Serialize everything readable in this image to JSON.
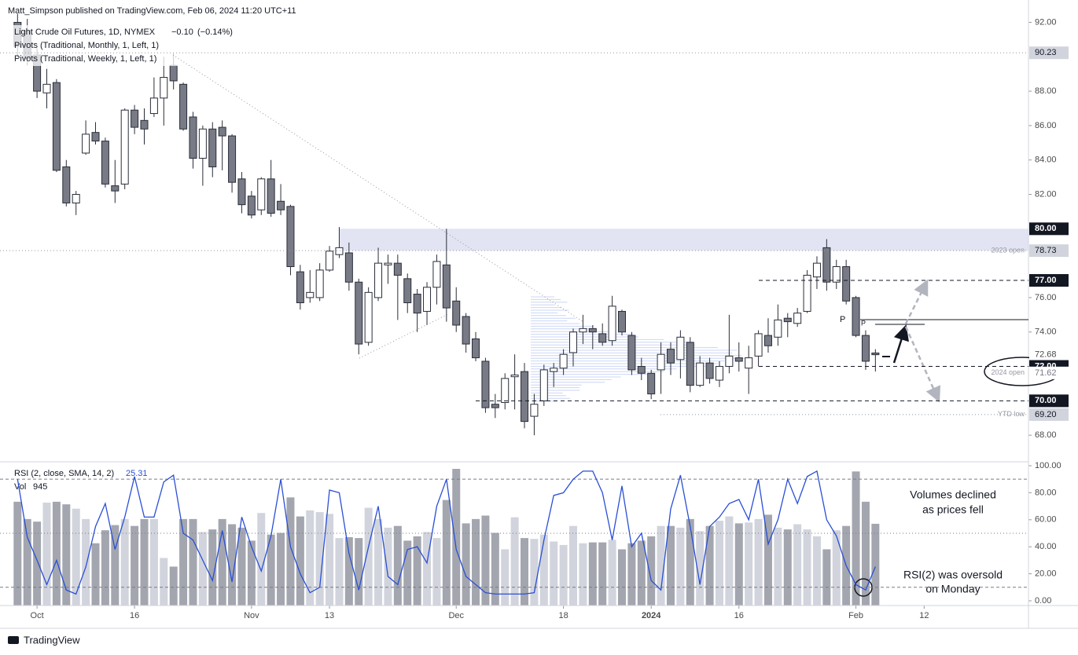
{
  "header": {
    "publisher": "Matt_Simpson published on TradingView.com, Feb 06, 2024 11:20 UTC+11",
    "brand": "TradingView"
  },
  "chart_data": {
    "type": "candlestick",
    "symbol": "Light Crude Oil Futures, 1D, NYMEX",
    "change": {
      "value": -0.1,
      "label": "−0.10"
    },
    "change_pct": {
      "value": -0.14,
      "label": "(−0.14%)"
    },
    "indicators": [
      "Pivots (Traditional, Monthly, 1, Left, 1)",
      "Pivots (Traditional, Weekly, 1, Left, 1)"
    ],
    "up_color": "#ffffff",
    "down_color": "#787b86",
    "edge_color": "#2a2e39",
    "candles": [
      [
        92.0,
        92.5,
        90.0,
        90.6
      ],
      [
        91.5,
        92.2,
        89.5,
        89.9
      ],
      [
        90.1,
        90.5,
        87.6,
        88.0
      ],
      [
        87.9,
        89.3,
        87.0,
        88.4
      ],
      [
        88.5,
        88.7,
        83.3,
        83.4
      ],
      [
        83.6,
        84.0,
        81.3,
        81.5
      ],
      [
        81.5,
        82.2,
        80.8,
        82.0
      ],
      [
        84.4,
        86.3,
        84.3,
        85.5
      ],
      [
        85.6,
        86.2,
        84.9,
        85.1
      ],
      [
        85.1,
        85.3,
        82.4,
        82.6
      ],
      [
        82.5,
        84.0,
        81.5,
        82.2
      ],
      [
        82.6,
        87.0,
        82.3,
        86.9
      ],
      [
        86.9,
        87.2,
        85.5,
        85.9
      ],
      [
        86.3,
        87.0,
        84.9,
        85.8
      ],
      [
        86.7,
        88.8,
        86.5,
        87.6
      ],
      [
        87.6,
        90.0,
        86.0,
        88.8
      ],
      [
        89.5,
        90.2,
        88.1,
        88.6
      ],
      [
        88.4,
        88.5,
        85.7,
        85.8
      ],
      [
        86.5,
        86.8,
        83.5,
        84.1
      ],
      [
        84.1,
        86.0,
        82.5,
        85.8
      ],
      [
        85.8,
        86.2,
        83.0,
        83.6
      ],
      [
        85.9,
        86.3,
        83.4,
        85.4
      ],
      [
        85.4,
        85.5,
        82.1,
        82.7
      ],
      [
        82.9,
        83.3,
        80.9,
        81.4
      ],
      [
        81.9,
        82.2,
        80.6,
        80.8
      ],
      [
        81.1,
        83.0,
        80.8,
        82.9
      ],
      [
        82.9,
        84.0,
        80.7,
        80.9
      ],
      [
        81.6,
        82.6,
        80.8,
        81.1
      ],
      [
        81.3,
        81.4,
        77.3,
        77.8
      ],
      [
        77.5,
        77.9,
        75.3,
        75.7
      ],
      [
        76.0,
        77.6,
        75.7,
        76.3
      ],
      [
        76.0,
        78.0,
        75.8,
        77.6
      ],
      [
        77.6,
        79.0,
        77.5,
        78.7
      ],
      [
        78.5,
        80.1,
        78.3,
        78.9
      ],
      [
        78.6,
        79.2,
        76.4,
        76.9
      ],
      [
        76.9,
        77.1,
        72.7,
        73.3
      ],
      [
        73.4,
        76.6,
        73.2,
        76.3
      ],
      [
        76.0,
        78.9,
        75.8,
        78.0
      ],
      [
        77.9,
        78.5,
        76.8,
        78.0
      ],
      [
        78.0,
        78.5,
        74.7,
        77.3
      ],
      [
        77.1,
        77.4,
        75.1,
        75.7
      ],
      [
        76.2,
        76.5,
        74.0,
        75.1
      ],
      [
        75.2,
        76.9,
        74.4,
        76.6
      ],
      [
        76.6,
        78.5,
        75.6,
        78.1
      ],
      [
        77.9,
        80.0,
        74.6,
        75.4
      ],
      [
        75.8,
        76.6,
        74.0,
        74.4
      ],
      [
        74.9,
        75.1,
        72.8,
        73.3
      ],
      [
        73.6,
        74.0,
        72.3,
        72.5
      ],
      [
        72.3,
        72.5,
        69.3,
        69.6
      ],
      [
        69.8,
        70.4,
        69.0,
        69.6
      ],
      [
        69.9,
        71.6,
        69.5,
        71.3
      ],
      [
        71.4,
        72.7,
        69.5,
        71.5
      ],
      [
        71.7,
        72.2,
        68.4,
        68.8
      ],
      [
        69.1,
        70.4,
        68.0,
        69.8
      ],
      [
        70.0,
        72.1,
        69.7,
        71.8
      ],
      [
        71.7,
        72.2,
        70.8,
        71.9
      ],
      [
        71.9,
        73.0,
        71.5,
        72.7
      ],
      [
        72.8,
        74.2,
        72.0,
        74.0
      ],
      [
        74.0,
        75.0,
        73.3,
        74.2
      ],
      [
        74.2,
        74.4,
        73.0,
        74.0
      ],
      [
        73.9,
        74.5,
        73.2,
        73.4
      ],
      [
        73.5,
        76.1,
        73.2,
        75.5
      ],
      [
        75.2,
        75.3,
        73.8,
        74.0
      ],
      [
        73.8,
        74.0,
        71.5,
        71.8
      ],
      [
        72.0,
        72.5,
        71.2,
        71.6
      ],
      [
        71.6,
        71.8,
        70.1,
        70.4
      ],
      [
        71.8,
        73.4,
        70.4,
        72.7
      ],
      [
        73.0,
        73.4,
        71.5,
        72.2
      ],
      [
        72.4,
        74.1,
        71.3,
        73.7
      ],
      [
        73.4,
        73.7,
        70.5,
        70.9
      ],
      [
        70.9,
        72.6,
        70.8,
        72.2
      ],
      [
        72.2,
        72.5,
        71.0,
        71.3
      ],
      [
        71.2,
        72.3,
        70.8,
        72.0
      ],
      [
        72.0,
        75.0,
        71.6,
        72.6
      ],
      [
        72.5,
        73.4,
        71.7,
        72.3
      ],
      [
        71.9,
        73.2,
        70.4,
        72.5
      ],
      [
        72.6,
        74.1,
        72.0,
        73.9
      ],
      [
        73.8,
        74.8,
        72.8,
        73.2
      ],
      [
        73.7,
        75.6,
        73.2,
        74.7
      ],
      [
        74.8,
        75.1,
        73.7,
        74.6
      ],
      [
        74.5,
        75.4,
        74.3,
        75.1
      ],
      [
        75.2,
        77.6,
        75.1,
        77.3
      ],
      [
        77.2,
        78.4,
        76.5,
        78.0
      ],
      [
        78.9,
        79.4,
        76.4,
        76.9
      ],
      [
        76.9,
        78.2,
        76.5,
        77.8
      ],
      [
        77.8,
        78.2,
        75.6,
        75.8
      ],
      [
        76.0,
        76.1,
        73.7,
        73.8
      ],
      [
        73.8,
        74.1,
        71.8,
        72.3
      ],
      [
        72.78,
        73.0,
        71.7,
        72.68
      ]
    ],
    "xlim": [
      -1.8,
      103.7
    ],
    "xticks": [
      {
        "value": 2,
        "label": "Oct"
      },
      {
        "value": 12,
        "label": "16"
      },
      {
        "value": 24,
        "label": "Nov"
      },
      {
        "value": 32,
        "label": "13"
      },
      {
        "value": 45,
        "label": "Dec"
      },
      {
        "value": 56,
        "label": "18"
      },
      {
        "value": 65,
        "label": "2024"
      },
      {
        "value": 74,
        "label": "16"
      },
      {
        "value": 86,
        "label": "Feb"
      },
      {
        "value": 93,
        "label": "12"
      }
    ],
    "ylim": [
      66.5,
      93.3
    ],
    "yticks": [
      {
        "value": 92,
        "label": "92.00"
      },
      {
        "value": 88,
        "label": "88.00"
      },
      {
        "value": 86,
        "label": "86.00"
      },
      {
        "value": 84,
        "label": "84.00"
      },
      {
        "value": 82,
        "label": "82.00"
      },
      {
        "value": 76,
        "label": "76.00"
      },
      {
        "value": 74,
        "label": "74.00"
      },
      {
        "value": 68,
        "label": "68.00"
      }
    ],
    "price_labels": [
      {
        "value": 90.23,
        "style": "gray",
        "line": "dotted"
      },
      {
        "value": 80,
        "label": "80.00",
        "style": "dark"
      },
      {
        "value": 78.73,
        "style": "gray",
        "line": "dotted",
        "note": "2023 open"
      },
      {
        "value": 77,
        "label": "77.00",
        "style": "dark",
        "line": "dashed"
      },
      {
        "value": 72,
        "label": "72.00",
        "style": "dark",
        "line": "dashed"
      },
      {
        "value": 71.62,
        "style": "light",
        "note": "2024 open"
      },
      {
        "value": 70,
        "label": "70.00",
        "style": "dark",
        "line": "dashed"
      },
      {
        "value": 69.2,
        "label": "69.20",
        "style": "gray",
        "line": "dotted",
        "note": "YTD low"
      }
    ],
    "pivot_markers": [
      "P",
      "P"
    ],
    "rsi": {
      "label": "RSI (2, close, SMA, 14, 2)",
      "color": "#2a4fd6",
      "values": [
        90,
        47,
        30,
        12,
        30,
        8,
        5,
        25,
        55,
        72,
        38,
        62,
        92,
        62,
        62,
        88,
        93,
        50,
        45,
        30,
        15,
        52,
        14,
        62,
        40,
        22,
        48,
        90,
        40,
        20,
        6,
        10,
        82,
        80,
        35,
        8,
        40,
        70,
        18,
        12,
        38,
        40,
        28,
        70,
        90,
        38,
        18,
        12,
        6,
        5,
        5,
        5,
        5,
        6,
        45,
        78,
        80,
        90,
        96,
        96,
        80,
        45,
        85,
        40,
        50,
        15,
        8,
        68,
        93,
        55,
        12,
        55,
        62,
        72,
        75,
        60,
        90,
        42,
        60,
        90,
        72,
        92,
        96,
        60,
        48,
        26,
        12,
        8,
        25.31
      ],
      "ylim": [
        -3.5,
        102.9
      ],
      "yticks": [
        {
          "value": 100,
          "label": "100.00"
        },
        {
          "value": 80,
          "label": "80.00"
        },
        {
          "value": 60,
          "label": "60.00"
        },
        {
          "value": 40,
          "label": "40.00"
        },
        {
          "value": 20,
          "label": "20.00"
        },
        {
          "value": 0,
          "label": "0.00"
        }
      ],
      "bands": [
        90,
        50,
        10
      ]
    },
    "volume": {
      "label": "Vol",
      "up_color": "#d1d4dc",
      "down_color": "#a3a6af",
      "values": [
        1200,
        1000,
        970,
        1190,
        1200,
        1170,
        1120,
        1000,
        720,
        870,
        930,
        1000,
        920,
        1000,
        1000,
        550,
        450,
        1000,
        1000,
        850,
        880,
        1000,
        940,
        900,
        750,
        1070,
        820,
        840,
        1250,
        1030,
        1100,
        1080,
        1060,
        780,
        790,
        780,
        1130,
        1000,
        900,
        920,
        750,
        800,
        850,
        780,
        1220,
        1580,
        950,
        1000,
        1040,
        840,
        650,
        1020,
        780,
        770,
        820,
        740,
        700,
        920,
        720,
        730,
        730,
        760,
        650,
        720,
        750,
        800,
        920,
        920,
        900,
        1000,
        860,
        920,
        980,
        1030,
        950,
        960,
        1000,
        1050,
        900,
        880,
        940,
        880,
        800,
        650,
        870,
        920,
        1550,
        1200,
        945
      ]
    },
    "annotations": [
      [
        "Volumes declined",
        "as prices fell"
      ],
      [
        "RSI(2) was oversold",
        "on Monday"
      ]
    ]
  }
}
